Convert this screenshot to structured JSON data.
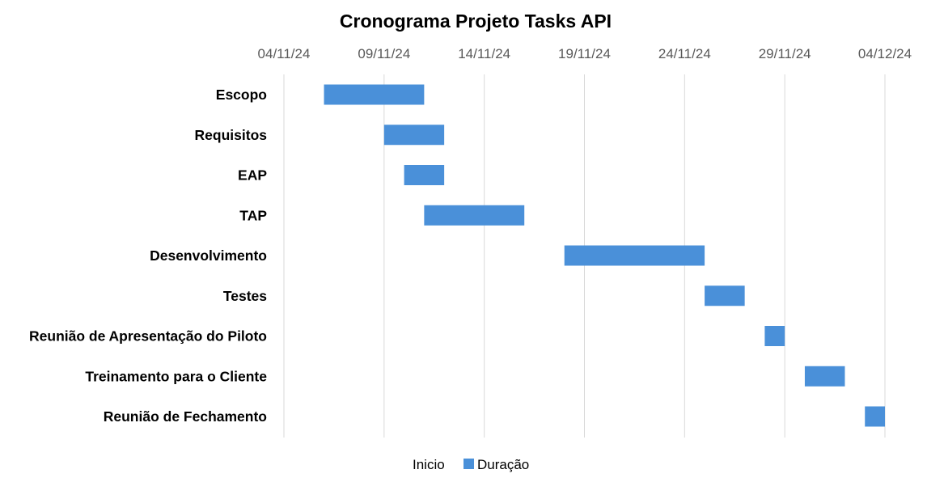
{
  "chart_data": {
    "type": "bar",
    "orientation": "horizontal-gantt",
    "title": "Cronograma Projeto Tasks API",
    "x_axis_position": "top",
    "xlim": [
      "2024-11-04",
      "2024-12-04"
    ],
    "x_ticks": [
      "2024-11-04",
      "2024-11-09",
      "2024-11-14",
      "2024-11-19",
      "2024-11-24",
      "2024-11-29",
      "2024-12-04"
    ],
    "x_tick_labels": [
      "04/11/24",
      "09/11/24",
      "14/11/24",
      "19/11/24",
      "24/11/24",
      "29/11/24",
      "04/12/24"
    ],
    "grid": true,
    "categories": [
      "Escopo",
      "Requisitos",
      "EAP",
      "TAP",
      "Desenvolvimento",
      "Testes",
      "Reunião de Apresentação do Piloto",
      "Treinamento para o Cliente",
      "Reunião de Fechamento"
    ],
    "series": [
      {
        "name": "Inicio",
        "color": "none",
        "values": [
          "2024-11-06",
          "2024-11-09",
          "2024-11-10",
          "2024-11-11",
          "2024-11-18",
          "2024-11-25",
          "2024-11-28",
          "2024-11-30",
          "2024-12-03"
        ]
      },
      {
        "name": "Duração",
        "color": "#4a90d9",
        "values": [
          5,
          3,
          2,
          5,
          7,
          2,
          1,
          2,
          1
        ]
      }
    ],
    "legend_position": "bottom"
  }
}
